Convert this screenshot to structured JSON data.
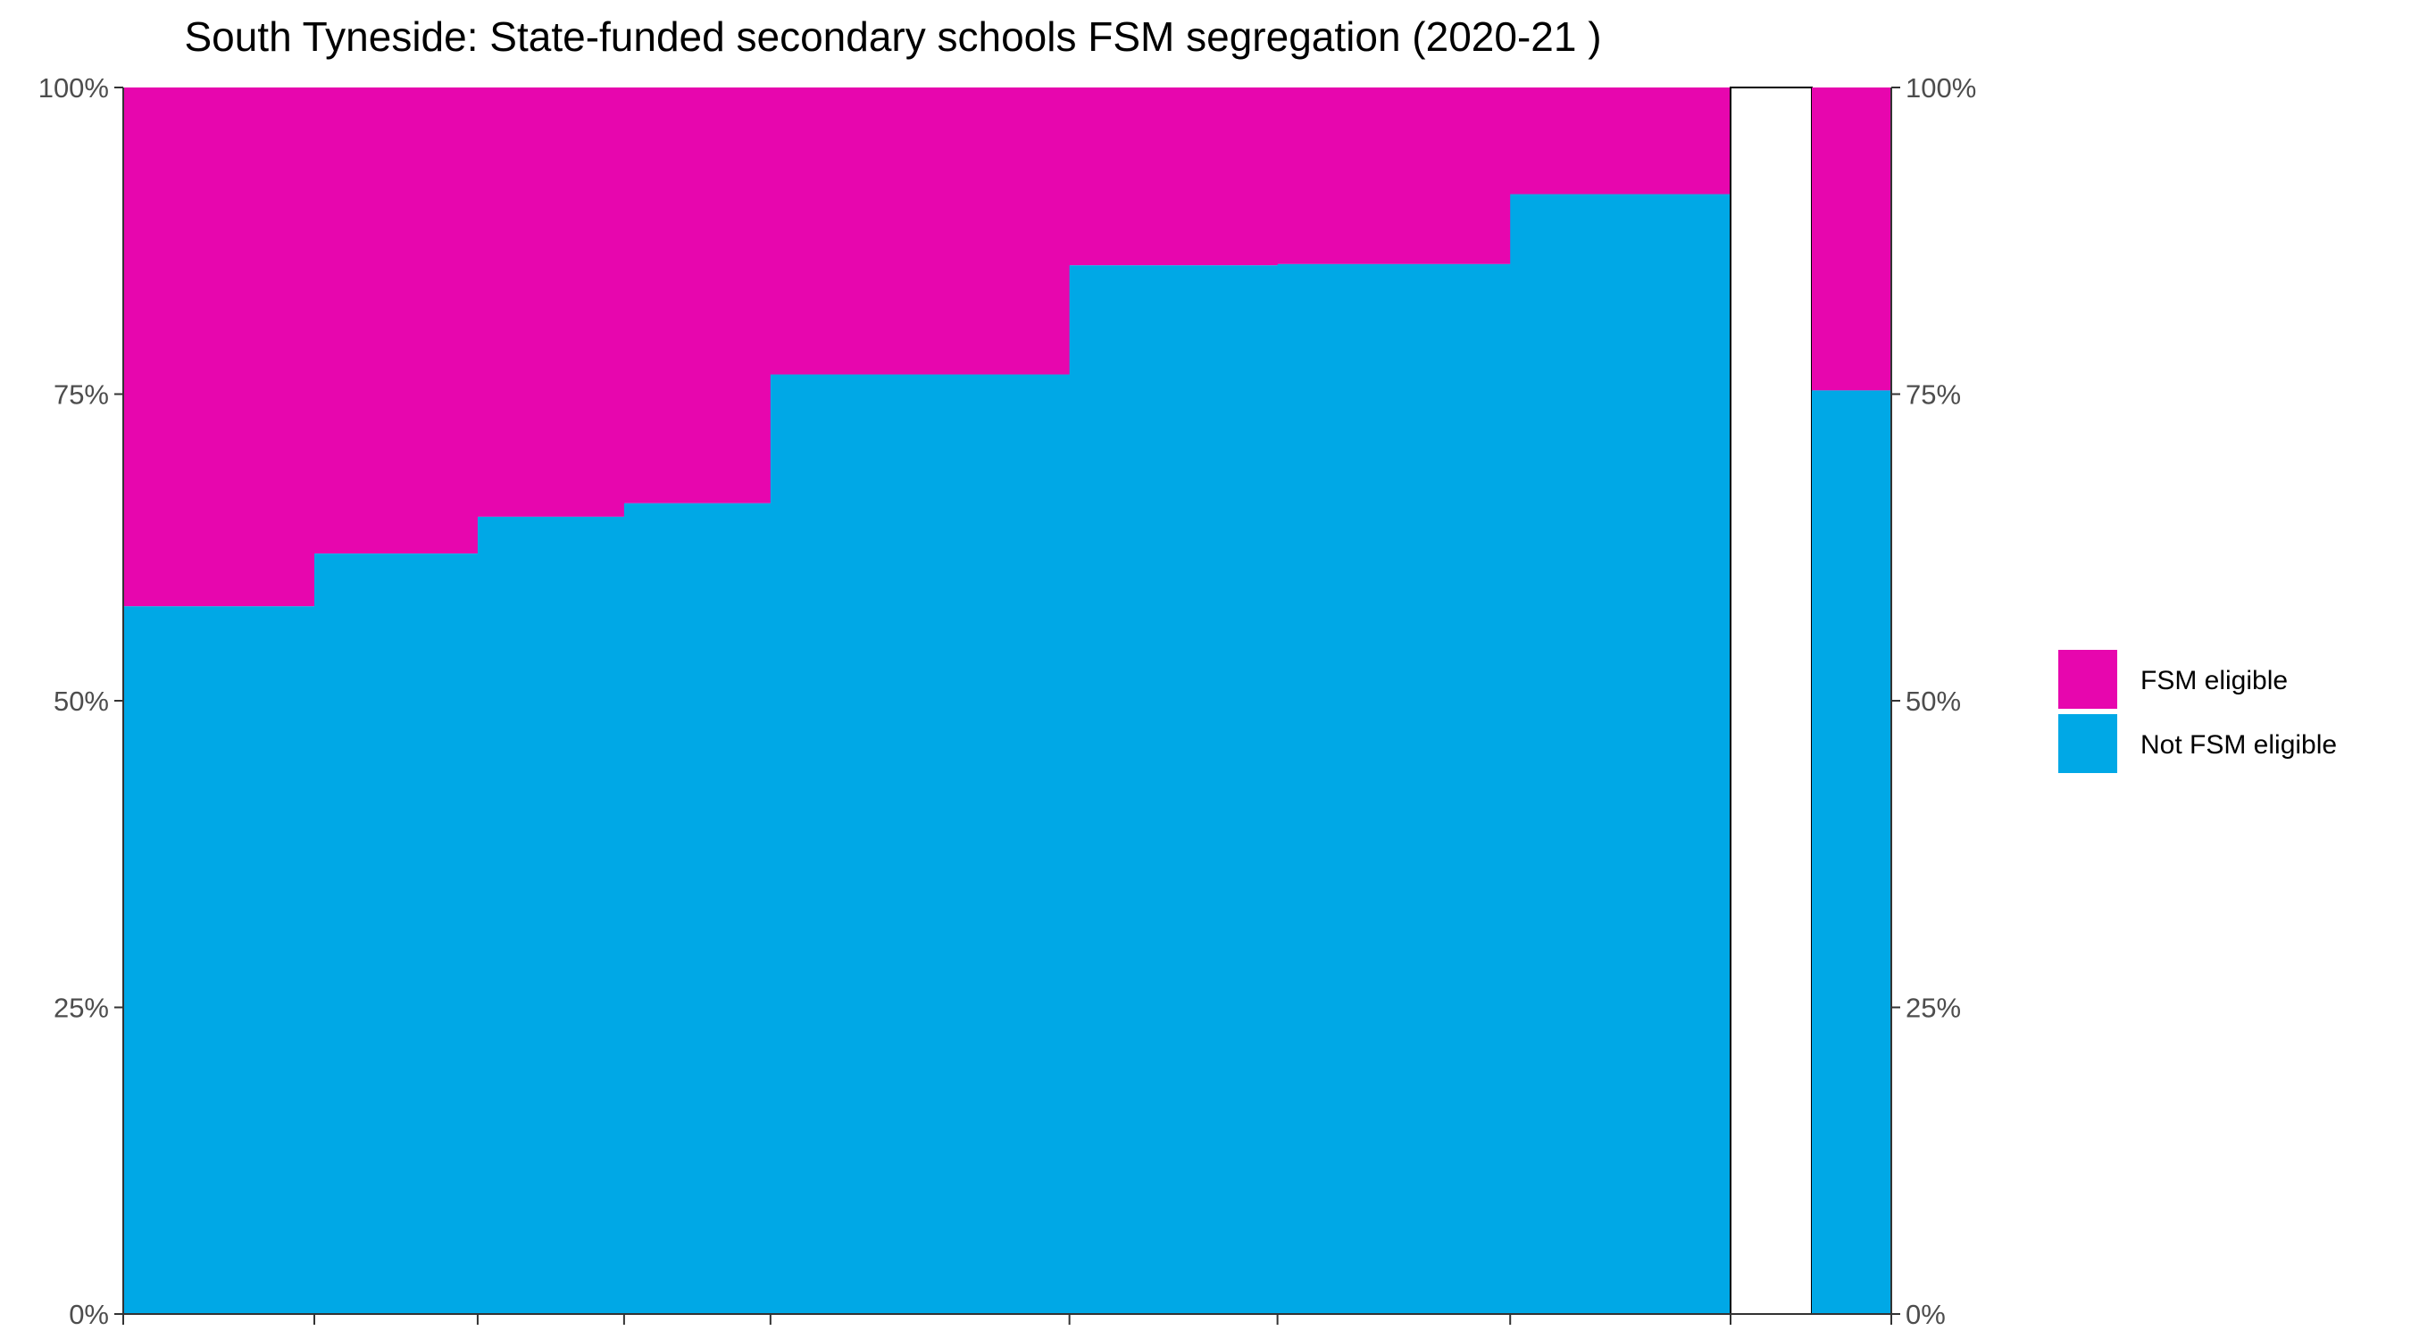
{
  "chart_data": {
    "type": "bar",
    "title": "South Tyneside: State-funded secondary schools FSM segregation (2020-21 )",
    "ylim": [
      0,
      100
    ],
    "y_ticks": [
      "0%",
      "25%",
      "50%",
      "75%",
      "100%"
    ],
    "grid": false,
    "legend_position": "right",
    "series": [
      {
        "name": "FSM eligible",
        "color": "#E706AE"
      },
      {
        "name": "Not FSM eligible",
        "color": "#00A8E6"
      }
    ],
    "schools": [
      {
        "relative_size": 124,
        "not_fsm_pct": 57.7,
        "fsm_pct": 42.3
      },
      {
        "relative_size": 106,
        "not_fsm_pct": 62.0,
        "fsm_pct": 38.0
      },
      {
        "relative_size": 95,
        "not_fsm_pct": 65.0,
        "fsm_pct": 35.0
      },
      {
        "relative_size": 95,
        "not_fsm_pct": 66.1,
        "fsm_pct": 33.9
      },
      {
        "relative_size": 194,
        "not_fsm_pct": 76.6,
        "fsm_pct": 23.4
      },
      {
        "relative_size": 135,
        "not_fsm_pct": 85.5,
        "fsm_pct": 14.5
      },
      {
        "relative_size": 151,
        "not_fsm_pct": 85.6,
        "fsm_pct": 14.4
      },
      {
        "relative_size": 143,
        "not_fsm_pct": 91.3,
        "fsm_pct": 8.7
      }
    ],
    "overall": {
      "not_fsm_pct": 75.3,
      "fsm_pct": 24.7
    }
  }
}
